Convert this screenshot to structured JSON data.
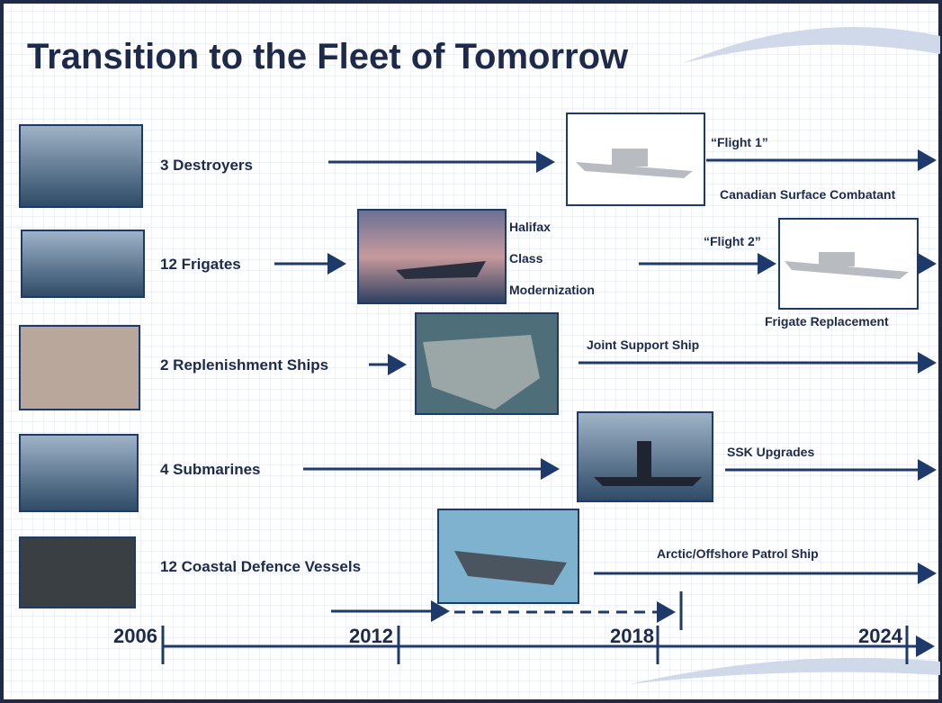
{
  "title": "Transition to the Fleet of Tomorrow",
  "rows": [
    {
      "label": "3 Destroyers"
    },
    {
      "label": "12 Frigates"
    },
    {
      "label": "2 Replenishment Ships"
    },
    {
      "label": "4 Submarines"
    },
    {
      "label": "12 Coastal Defence Vessels"
    }
  ],
  "annotations": {
    "flight_1": "“Flight 1”",
    "canadian_surface_combatant": "Canadian Surface Combatant",
    "halifax": "Halifax",
    "class": "Class",
    "modernization": "Modernization",
    "flight_2": "“Flight 2”",
    "frigate_replacement": "Frigate Replacement",
    "joint_support_ship": "Joint Support Ship",
    "ssk_upgrades": "SSK Upgrades",
    "arctic_offshore_patrol_ship": "Arctic/Offshore Patrol Ship"
  },
  "timeline": {
    "years": [
      "2006",
      "2012",
      "2018",
      "2024"
    ]
  }
}
